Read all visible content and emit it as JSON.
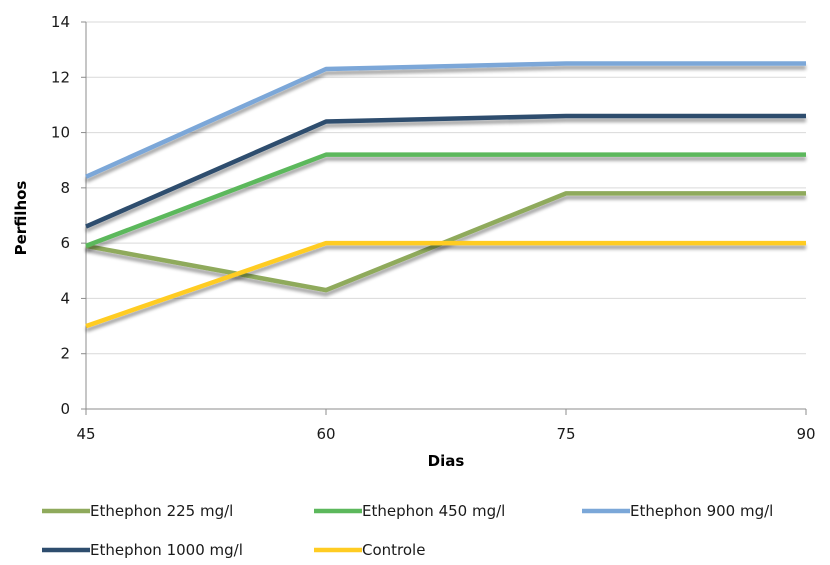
{
  "chart_data": {
    "type": "line",
    "title": "",
    "xlabel": "Dias",
    "ylabel": "Perfilhos",
    "x": [
      45,
      60,
      75,
      90
    ],
    "x_tick_labels": [
      "45",
      "60",
      "75",
      "90"
    ],
    "ylim": [
      0,
      14
    ],
    "y_ticks": [
      0,
      2,
      4,
      6,
      8,
      10,
      12,
      14
    ],
    "y_tick_labels": [
      "0",
      "2",
      "4",
      "6",
      "8",
      "10",
      "12",
      "14"
    ],
    "grid": "horizontal",
    "legend_position": "bottom",
    "series": [
      {
        "name": "Ethephon 225 mg/l",
        "color": "#8faa5c",
        "values": [
          5.9,
          4.3,
          7.8,
          7.8
        ]
      },
      {
        "name": "Ethephon 450 mg/l",
        "color": "#5cb85c",
        "values": [
          5.9,
          9.2,
          9.2,
          9.2
        ]
      },
      {
        "name": "Ethephon 900 mg/l",
        "color": "#7ba7d8",
        "values": [
          8.4,
          12.3,
          12.5,
          12.5
        ]
      },
      {
        "name": "Ethephon 1000 mg/l",
        "color": "#2e4d6e",
        "values": [
          6.6,
          10.4,
          10.6,
          10.6
        ]
      },
      {
        "name": "Controle",
        "color": "#ffcc22",
        "values": [
          3.0,
          6.0,
          6.0,
          6.0
        ]
      }
    ]
  }
}
